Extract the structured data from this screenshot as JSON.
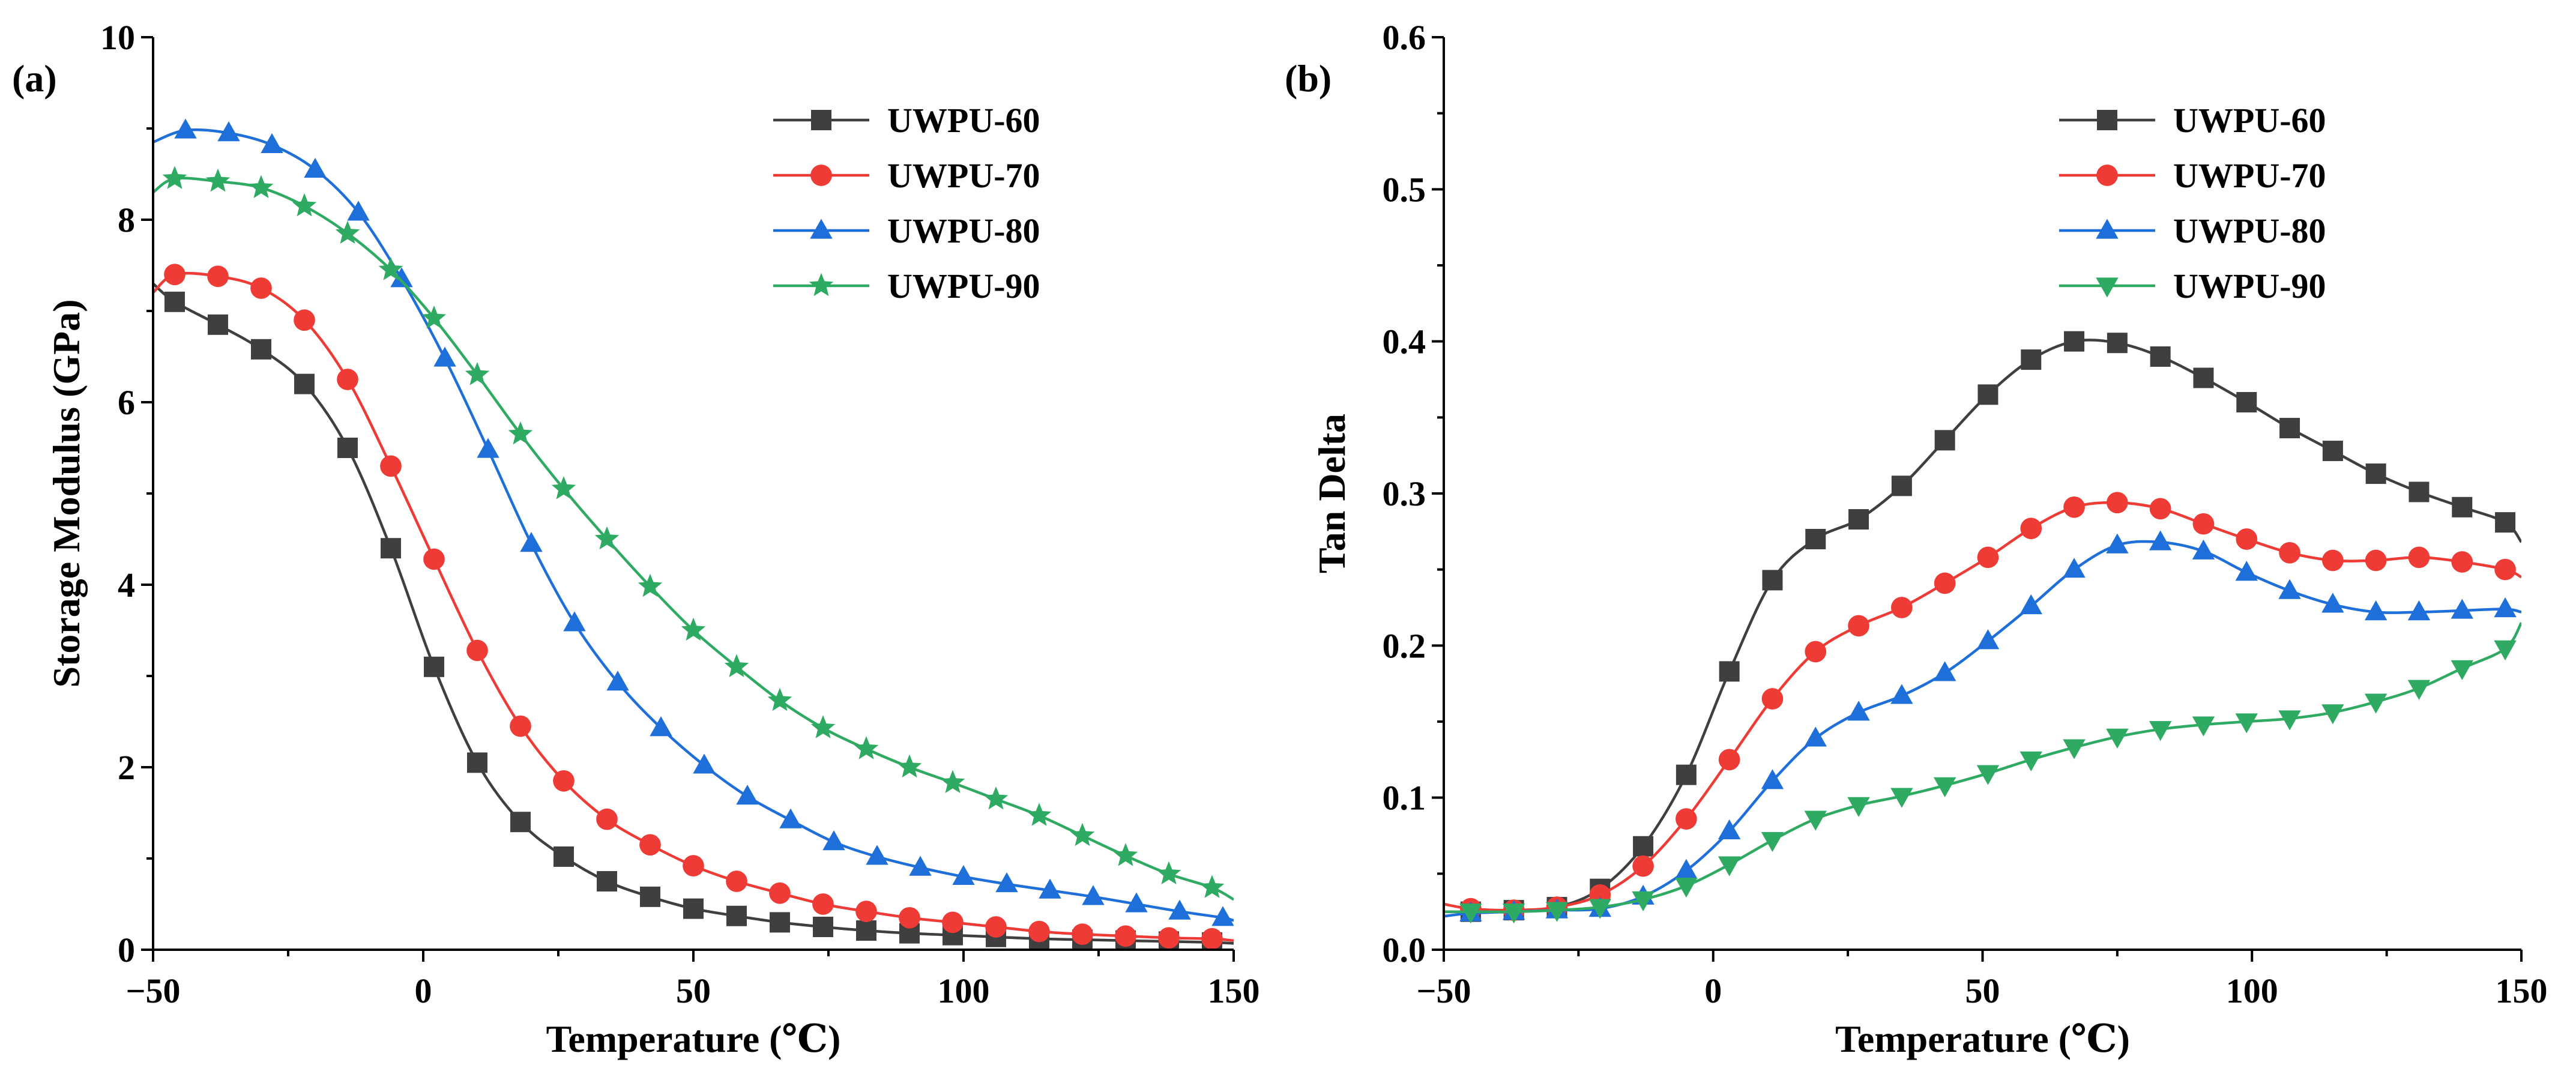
{
  "figure": {
    "panels": [
      "(a)",
      "(b)"
    ]
  },
  "chart_data": [
    {
      "panel_label": "(a)",
      "type": "line",
      "title": "",
      "xlabel": "Temperature (℃)",
      "ylabel": "Storage Modulus (GPa)",
      "xlim": [
        -50,
        150
      ],
      "ylim": [
        0,
        10
      ],
      "xticks": [
        -50,
        0,
        50,
        100,
        150
      ],
      "yticks": [
        0,
        2,
        4,
        6,
        8,
        10
      ],
      "x_tick_labels": [
        "−50",
        "0",
        "50",
        "100",
        "150"
      ],
      "y_tick_labels": [
        "0",
        "2",
        "4",
        "6",
        "8",
        "10"
      ],
      "grid": false,
      "legend_position": "top-right",
      "series": [
        {
          "name": "UWPU-60",
          "color": "#3f3f3f",
          "marker": "square",
          "x": [
            -50,
            -46,
            -38,
            -30,
            -22,
            -14,
            -6,
            2,
            10,
            18,
            26,
            34,
            42,
            50,
            58,
            66,
            74,
            82,
            90,
            98,
            106,
            114,
            122,
            130,
            138,
            146,
            150
          ],
          "y": [
            7.3,
            7.1,
            6.85,
            6.58,
            6.2,
            5.5,
            4.4,
            3.1,
            2.05,
            1.4,
            1.02,
            0.75,
            0.58,
            0.45,
            0.37,
            0.3,
            0.25,
            0.21,
            0.18,
            0.16,
            0.14,
            0.12,
            0.11,
            0.1,
            0.09,
            0.08,
            0.07
          ]
        },
        {
          "name": "UWPU-70",
          "color": "#ee3b35",
          "marker": "circle",
          "x": [
            -50,
            -46,
            -38,
            -30,
            -22,
            -14,
            -6,
            2,
            10,
            18,
            26,
            34,
            42,
            50,
            58,
            66,
            74,
            82,
            90,
            98,
            106,
            114,
            122,
            130,
            138,
            146,
            150
          ],
          "y": [
            7.2,
            7.4,
            7.38,
            7.25,
            6.9,
            6.25,
            5.3,
            4.28,
            3.28,
            2.45,
            1.85,
            1.43,
            1.15,
            0.92,
            0.75,
            0.62,
            0.5,
            0.42,
            0.35,
            0.3,
            0.25,
            0.2,
            0.17,
            0.15,
            0.13,
            0.12,
            0.1
          ]
        },
        {
          "name": "UWPU-80",
          "color": "#1e6fd9",
          "marker": "triangle-up",
          "x": [
            -50,
            -44,
            -36,
            -28,
            -20,
            -12,
            -4,
            4,
            12,
            20,
            28,
            36,
            44,
            52,
            60,
            68,
            76,
            84,
            92,
            100,
            108,
            116,
            124,
            132,
            140,
            148,
            150
          ],
          "y": [
            8.85,
            8.98,
            8.95,
            8.82,
            8.55,
            8.08,
            7.35,
            6.48,
            5.48,
            4.45,
            3.58,
            2.93,
            2.43,
            2.02,
            1.68,
            1.42,
            1.18,
            1.02,
            0.9,
            0.8,
            0.72,
            0.65,
            0.58,
            0.5,
            0.42,
            0.35,
            0.32
          ]
        },
        {
          "name": "UWPU-90",
          "color": "#2eaa62",
          "marker": "star",
          "x": [
            -50,
            -46,
            -38,
            -30,
            -22,
            -14,
            -6,
            2,
            10,
            18,
            26,
            34,
            42,
            50,
            58,
            66,
            74,
            82,
            90,
            98,
            106,
            114,
            122,
            130,
            138,
            146,
            150
          ],
          "y": [
            8.3,
            8.45,
            8.42,
            8.35,
            8.15,
            7.85,
            7.45,
            6.92,
            6.3,
            5.65,
            5.05,
            4.5,
            3.98,
            3.5,
            3.1,
            2.73,
            2.43,
            2.2,
            2.0,
            1.83,
            1.65,
            1.47,
            1.25,
            1.03,
            0.83,
            0.68,
            0.55
          ]
        }
      ]
    },
    {
      "panel_label": "(b)",
      "type": "line",
      "title": "",
      "xlabel": "Temperature (℃)",
      "ylabel": "Tan Delta",
      "xlim": [
        -50,
        150
      ],
      "ylim": [
        0,
        0.6
      ],
      "xticks": [
        -50,
        0,
        50,
        100,
        150
      ],
      "yticks": [
        0,
        0.1,
        0.2,
        0.3,
        0.4,
        0.5,
        0.6
      ],
      "x_tick_labels": [
        "−50",
        "0",
        "50",
        "100",
        "150"
      ],
      "y_tick_labels": [
        "0.0",
        "0.1",
        "0.2",
        "0.3",
        "0.4",
        "0.5",
        "0.6"
      ],
      "grid": false,
      "legend_position": "top-right",
      "series": [
        {
          "name": "UWPU-60",
          "color": "#3f3f3f",
          "marker": "square",
          "x": [
            -50,
            -45,
            -37,
            -29,
            -21,
            -13,
            -5,
            3,
            11,
            19,
            27,
            35,
            43,
            51,
            59,
            67,
            75,
            83,
            91,
            99,
            107,
            115,
            123,
            131,
            139,
            147,
            150
          ],
          "y": [
            0.025,
            0.025,
            0.026,
            0.028,
            0.04,
            0.068,
            0.115,
            0.183,
            0.243,
            0.27,
            0.283,
            0.305,
            0.335,
            0.365,
            0.388,
            0.4,
            0.399,
            0.39,
            0.376,
            0.36,
            0.343,
            0.328,
            0.313,
            0.301,
            0.291,
            0.281,
            0.268
          ]
        },
        {
          "name": "UWPU-70",
          "color": "#ee3b35",
          "marker": "circle",
          "x": [
            -50,
            -45,
            -37,
            -29,
            -21,
            -13,
            -5,
            3,
            11,
            19,
            27,
            35,
            43,
            51,
            59,
            67,
            75,
            83,
            91,
            99,
            107,
            115,
            123,
            131,
            139,
            147,
            150
          ],
          "y": [
            0.03,
            0.027,
            0.026,
            0.028,
            0.036,
            0.055,
            0.086,
            0.125,
            0.165,
            0.196,
            0.213,
            0.225,
            0.241,
            0.258,
            0.277,
            0.291,
            0.294,
            0.29,
            0.28,
            0.27,
            0.261,
            0.256,
            0.256,
            0.258,
            0.255,
            0.25,
            0.245
          ]
        },
        {
          "name": "UWPU-80",
          "color": "#1e6fd9",
          "marker": "triangle-up",
          "x": [
            -50,
            -45,
            -37,
            -29,
            -21,
            -13,
            -5,
            3,
            11,
            19,
            27,
            35,
            43,
            51,
            59,
            67,
            75,
            83,
            91,
            99,
            107,
            115,
            123,
            131,
            139,
            147,
            150
          ],
          "y": [
            0.022,
            0.024,
            0.025,
            0.026,
            0.027,
            0.035,
            0.052,
            0.078,
            0.111,
            0.139,
            0.156,
            0.167,
            0.182,
            0.203,
            0.226,
            0.25,
            0.266,
            0.268,
            0.262,
            0.248,
            0.236,
            0.227,
            0.222,
            0.222,
            0.223,
            0.224,
            0.222
          ]
        },
        {
          "name": "UWPU-90",
          "color": "#2eaa62",
          "marker": "triangle-down",
          "x": [
            -50,
            -45,
            -37,
            -29,
            -21,
            -13,
            -5,
            3,
            11,
            19,
            27,
            35,
            43,
            51,
            59,
            67,
            75,
            83,
            91,
            99,
            107,
            115,
            123,
            131,
            139,
            147,
            150
          ],
          "y": [
            0.025,
            0.025,
            0.025,
            0.026,
            0.028,
            0.033,
            0.042,
            0.056,
            0.072,
            0.086,
            0.095,
            0.101,
            0.108,
            0.116,
            0.125,
            0.133,
            0.14,
            0.145,
            0.148,
            0.15,
            0.152,
            0.156,
            0.163,
            0.172,
            0.185,
            0.198,
            0.215
          ]
        }
      ]
    }
  ]
}
